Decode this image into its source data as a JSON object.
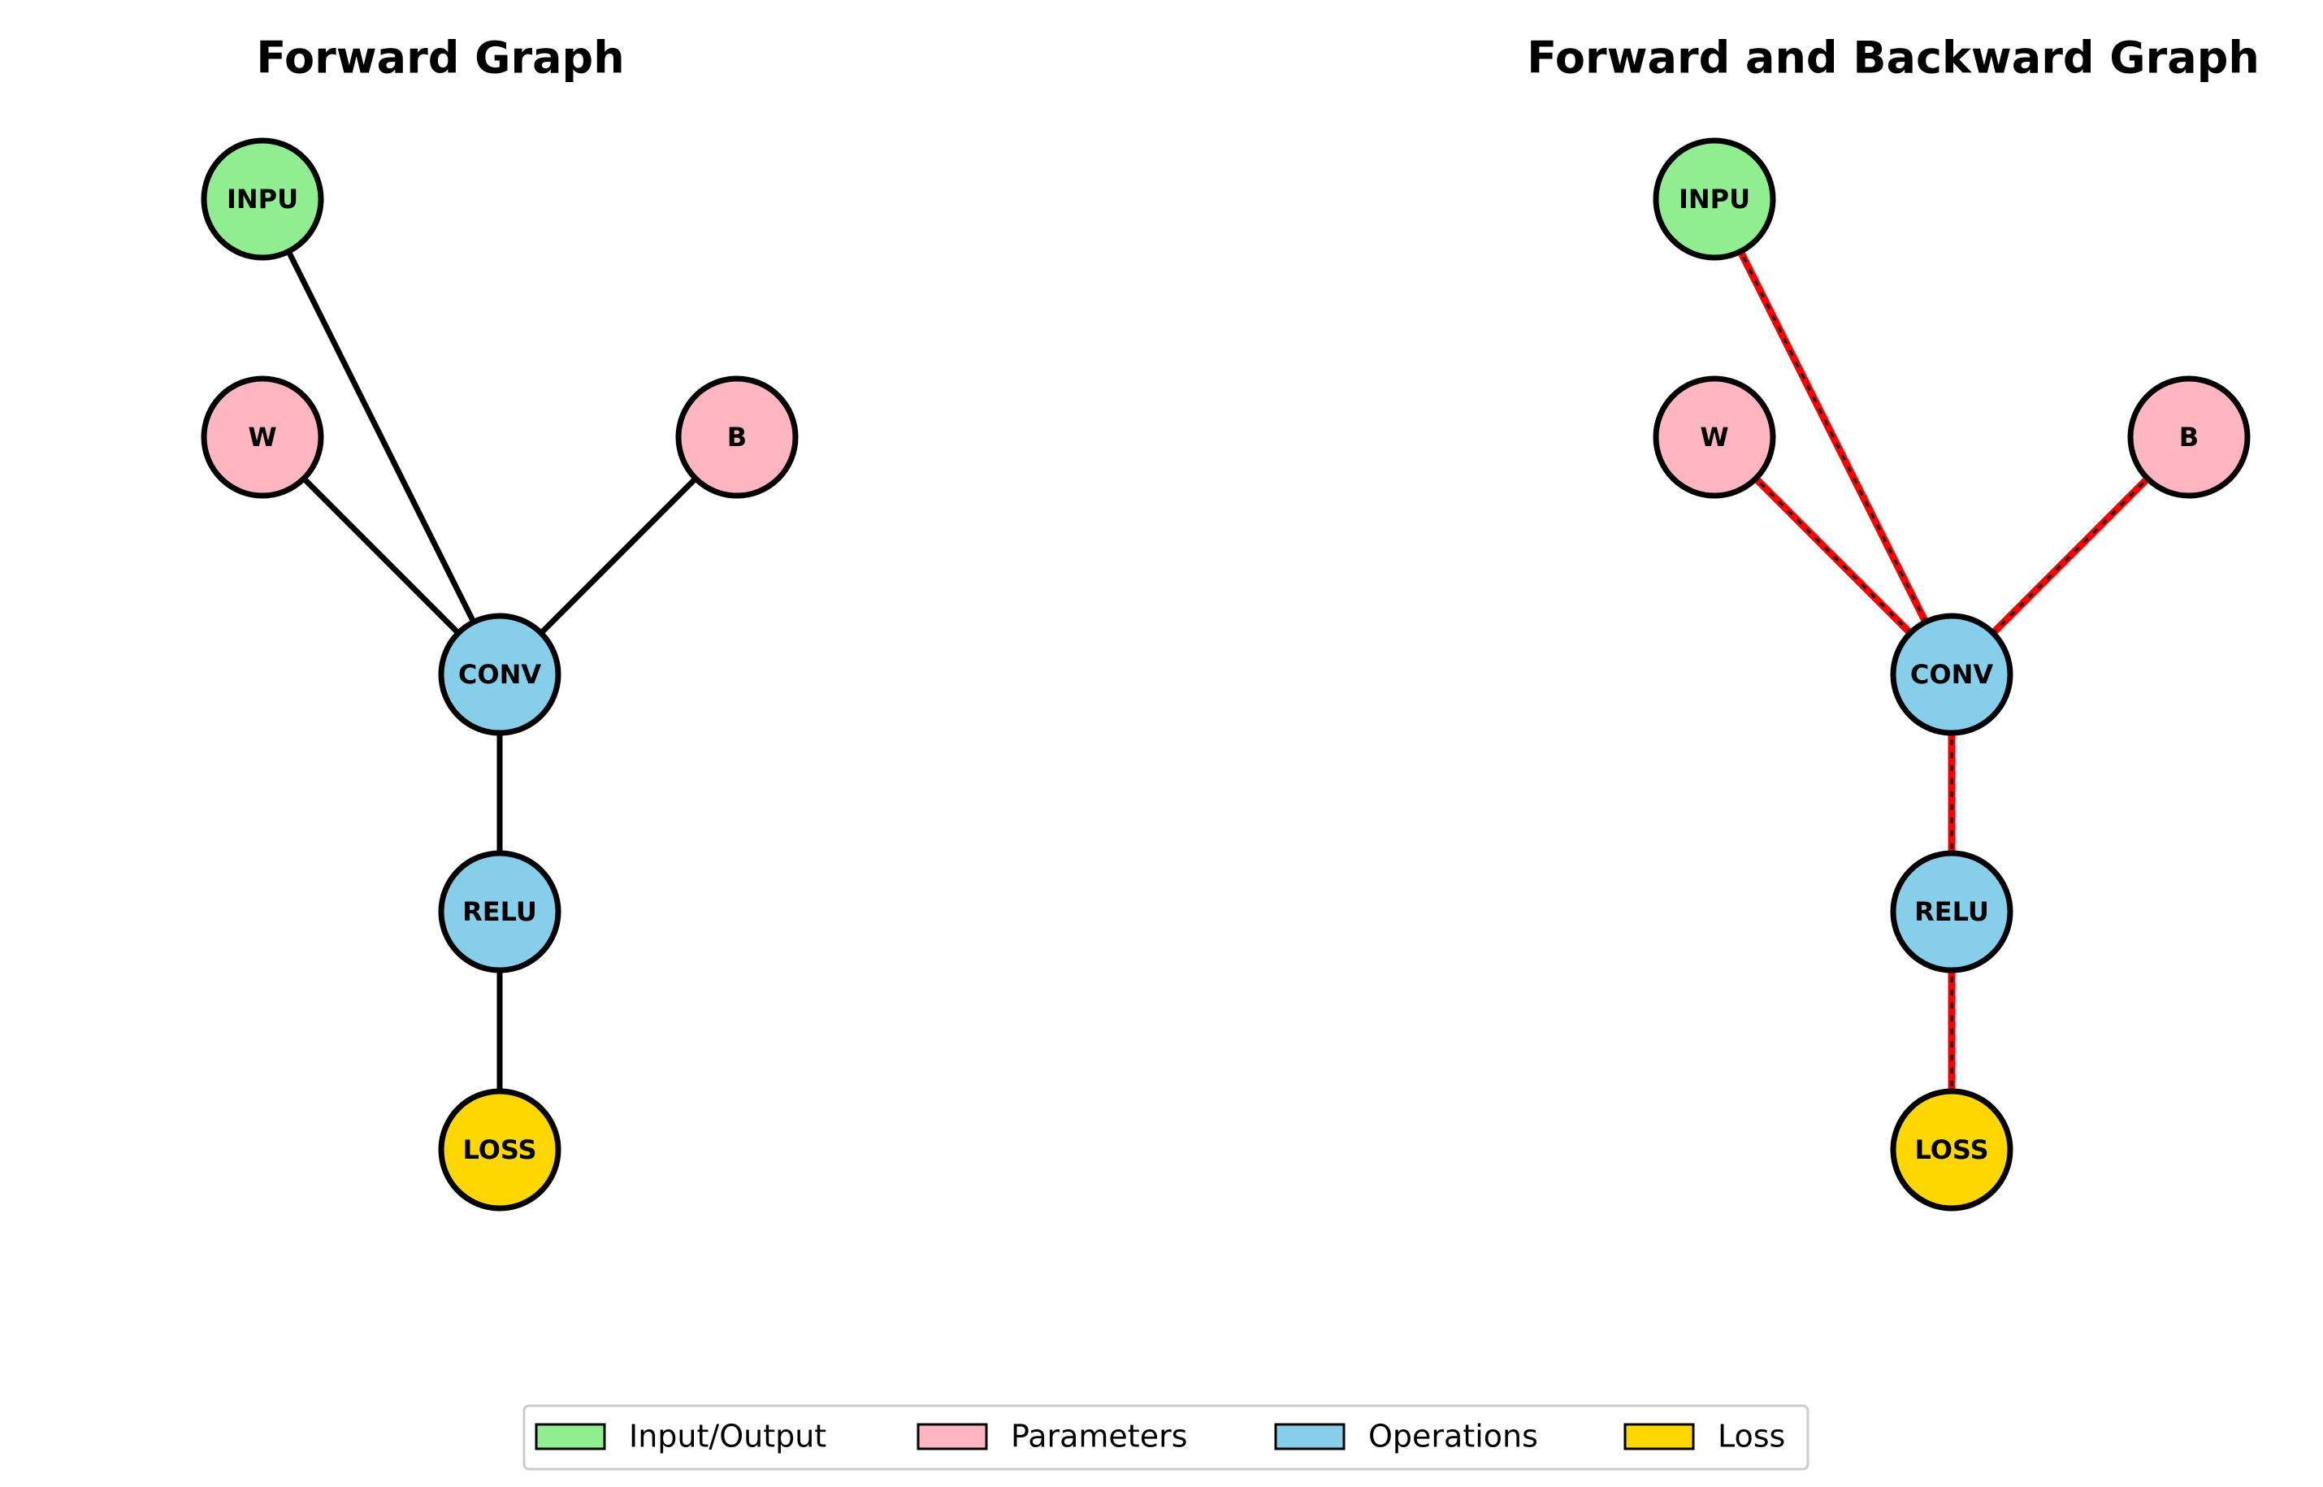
{
  "diagrams": [
    {
      "id": "forward",
      "title": "Forward Graph",
      "backward_overlay": false
    },
    {
      "id": "forward-backward",
      "title": "Forward and Backward Graph",
      "backward_overlay": true
    }
  ],
  "nodes": [
    {
      "id": "input",
      "label": "INPU",
      "category": "input"
    },
    {
      "id": "w",
      "label": "W",
      "category": "param"
    },
    {
      "id": "b",
      "label": "B",
      "category": "param"
    },
    {
      "id": "conv",
      "label": "CONV",
      "category": "op"
    },
    {
      "id": "relu",
      "label": "RELU",
      "category": "op"
    },
    {
      "id": "loss",
      "label": "LOSS",
      "category": "loss"
    }
  ],
  "edges": [
    [
      "input",
      "conv"
    ],
    [
      "w",
      "conv"
    ],
    [
      "b",
      "conv"
    ],
    [
      "conv",
      "relu"
    ],
    [
      "relu",
      "loss"
    ]
  ],
  "colors": {
    "input": "#90EE90",
    "param": "#FFB6C1",
    "op": "#87CEEB",
    "loss": "#FFD700",
    "edge": "#000000",
    "backward_edge": "#FF0000"
  },
  "legend": [
    {
      "label": "Input/Output",
      "category": "input"
    },
    {
      "label": "Parameters",
      "category": "param"
    },
    {
      "label": "Operations",
      "category": "op"
    },
    {
      "label": "Loss",
      "category": "loss"
    }
  ]
}
